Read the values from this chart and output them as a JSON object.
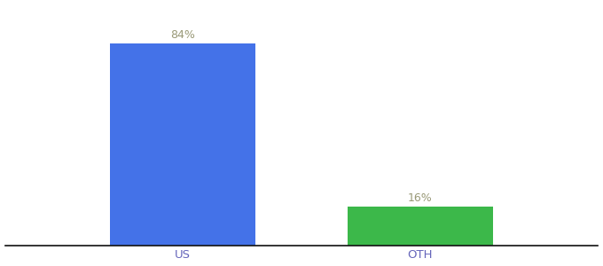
{
  "categories": [
    "US",
    "OTH"
  ],
  "values": [
    84,
    16
  ],
  "bar_colors": [
    "#4472e8",
    "#3cb84a"
  ],
  "labels": [
    "84%",
    "16%"
  ],
  "background_color": "#ffffff",
  "ylim": [
    0,
    100
  ],
  "label_fontsize": 9,
  "tick_fontsize": 9.5,
  "tick_color": "#6666bb",
  "label_color": "#999977",
  "bar_positions": [
    0.32,
    0.68
  ],
  "bar_width": 0.22
}
